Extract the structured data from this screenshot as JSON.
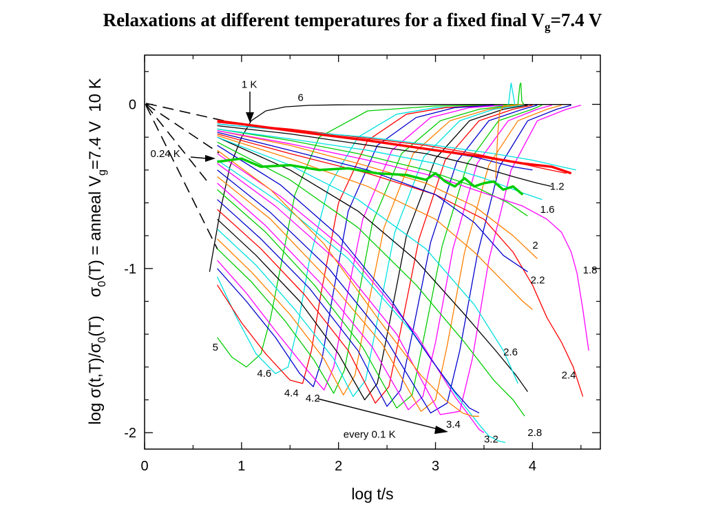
{
  "title": {
    "main": "Relaxations at different temperatures for a fixed final V",
    "sub": "g",
    "end": "=7.4 V"
  },
  "chart_data": {
    "type": "line",
    "xlabel": "log t/s",
    "ylabel": {
      "p1": "log σ(t,T)/σ",
      "s1": "0",
      "p2": "(T)    σ",
      "s2": "0",
      "p3": "(T) = anneal V",
      "s3": "g",
      "p4": "=7.4 V  10 K"
    },
    "xlim": [
      0,
      4.7
    ],
    "ylim": [
      -2.1,
      0.3
    ],
    "x_ticks": [
      {
        "v": 0,
        "label": "0"
      },
      {
        "v": 1,
        "label": "1"
      },
      {
        "v": 2,
        "label": "2"
      },
      {
        "v": 3,
        "label": "3"
      },
      {
        "v": 4,
        "label": "4"
      }
    ],
    "y_ticks": [
      {
        "v": 0,
        "label": "0"
      },
      {
        "v": -1,
        "label": "-1"
      },
      {
        "v": -2,
        "label": "-2"
      }
    ],
    "annotations": [
      {
        "text": "1 K",
        "x": 1.0,
        "y": 0.1
      },
      {
        "text": "6",
        "x": 1.58,
        "y": 0.02
      },
      {
        "text": "0.24 K",
        "x": 0.06,
        "y": -0.32
      },
      {
        "text": "1.2",
        "x": 4.18,
        "y": -0.52
      },
      {
        "text": "1.6",
        "x": 4.08,
        "y": -0.66
      },
      {
        "text": "2",
        "x": 4.0,
        "y": -0.88
      },
      {
        "text": "1.8",
        "x": 4.52,
        "y": -1.03
      },
      {
        "text": "2.2",
        "x": 3.98,
        "y": -1.09
      },
      {
        "text": "5",
        "x": 0.7,
        "y": -1.5
      },
      {
        "text": "4.6",
        "x": 1.16,
        "y": -1.66
      },
      {
        "text": "4.4",
        "x": 1.44,
        "y": -1.78
      },
      {
        "text": "4.2",
        "x": 1.66,
        "y": -1.81
      },
      {
        "text": "2.6",
        "x": 3.7,
        "y": -1.53
      },
      {
        "text": "2.4",
        "x": 4.3,
        "y": -1.67
      },
      {
        "text": "3.4",
        "x": 3.11,
        "y": -1.97
      },
      {
        "text": "every 0.1 K",
        "x": 2.05,
        "y": -2.03
      },
      {
        "text": "3.2",
        "x": 3.5,
        "y": -2.06
      },
      {
        "text": "2.8",
        "x": 3.95,
        "y": -2.02
      }
    ],
    "series": [
      {
        "color": "#000000",
        "x": [
          0.67,
          0.78,
          0.88,
          1.0,
          1.1,
          1.25,
          1.45,
          1.7,
          2.0,
          2.5,
          3.0,
          3.5,
          4.0,
          4.4
        ],
        "y": [
          -1.02,
          -0.65,
          -0.38,
          -0.2,
          -0.1,
          -0.04,
          -0.015,
          -0.006,
          -0.003,
          -0.002,
          -0.001,
          -0.001,
          -0.001,
          -0.001
        ]
      },
      {
        "color": "#00cc00",
        "x": [
          0.75,
          0.9,
          1.05,
          1.2,
          1.3,
          1.4,
          1.55,
          1.8,
          2.3,
          3.0,
          3.6,
          3.9
        ],
        "y": [
          -1.42,
          -1.54,
          -1.6,
          -1.52,
          -1.3,
          -1.0,
          -0.55,
          -0.2,
          -0.04,
          -0.01,
          -0.005,
          0
        ]
      },
      {
        "color": "#00e0e0",
        "x": [
          0.75,
          0.95,
          1.15,
          1.35,
          1.48,
          1.58,
          1.7,
          1.9,
          2.2,
          2.6,
          3.0,
          3.5,
          3.75,
          3.78,
          3.82,
          3.9
        ],
        "y": [
          -1.05,
          -1.3,
          -1.52,
          -1.64,
          -1.6,
          -1.35,
          -0.95,
          -0.5,
          -0.2,
          -0.06,
          -0.02,
          -0.01,
          -0.01,
          0.13,
          -0.01,
          -0.01
        ]
      },
      {
        "color": "#ff0000",
        "x": [
          0.75,
          1.0,
          1.25,
          1.5,
          1.63,
          1.72,
          1.82,
          2.0,
          2.3,
          2.7,
          3.1,
          3.6
        ],
        "y": [
          -1.1,
          -1.33,
          -1.52,
          -1.68,
          -1.7,
          -1.5,
          -1.15,
          -0.6,
          -0.22,
          -0.06,
          -0.02,
          -0.005
        ]
      },
      {
        "color": "#0000cc",
        "x": [
          0.75,
          1.05,
          1.35,
          1.6,
          1.74,
          1.83,
          1.93,
          2.1,
          2.4,
          2.8,
          3.2,
          3.6
        ],
        "y": [
          -1.0,
          -1.2,
          -1.42,
          -1.64,
          -1.72,
          -1.55,
          -1.2,
          -0.65,
          -0.25,
          -0.08,
          -0.02,
          -0.005
        ]
      },
      {
        "color": "#ff00ff",
        "x": [
          0.75,
          1.05,
          1.35,
          1.65,
          1.85,
          1.95,
          2.06,
          2.25,
          2.55,
          2.95,
          3.35,
          3.7
        ],
        "y": [
          -0.95,
          -1.15,
          -1.38,
          -1.6,
          -1.74,
          -1.6,
          -1.25,
          -0.7,
          -0.28,
          -0.08,
          -0.02,
          -0.005
        ]
      },
      {
        "color": "#00cc00",
        "x": [
          0.75,
          1.1,
          1.45,
          1.75,
          1.95,
          2.06,
          2.17,
          2.35,
          2.65,
          3.05,
          3.45,
          3.8
        ],
        "y": [
          -0.88,
          -1.08,
          -1.32,
          -1.56,
          -1.76,
          -1.62,
          -1.28,
          -0.72,
          -0.3,
          -0.1,
          -0.03,
          -0.005
        ]
      },
      {
        "color": "#ff7f00",
        "x": [
          0.75,
          1.1,
          1.5,
          1.85,
          2.05,
          2.17,
          2.28,
          2.47,
          2.77,
          3.15,
          3.55,
          3.85
        ],
        "y": [
          -0.82,
          -1.02,
          -1.28,
          -1.55,
          -1.77,
          -1.65,
          -1.3,
          -0.75,
          -0.3,
          -0.1,
          -0.03,
          -0.005
        ]
      },
      {
        "color": "#00e0e0",
        "x": [
          0.75,
          1.15,
          1.55,
          1.95,
          2.15,
          2.28,
          2.4,
          2.58,
          2.88,
          3.25,
          3.6,
          3.9
        ],
        "y": [
          -0.76,
          -0.98,
          -1.25,
          -1.55,
          -1.78,
          -1.68,
          -1.32,
          -0.78,
          -0.32,
          -0.1,
          -0.03,
          -0.005
        ]
      },
      {
        "color": "#000000",
        "x": [
          0.75,
          1.15,
          1.6,
          2.0,
          2.27,
          2.4,
          2.52,
          2.7,
          3.0,
          3.35,
          3.7,
          3.95
        ],
        "y": [
          -0.7,
          -0.92,
          -1.2,
          -1.52,
          -1.8,
          -1.7,
          -1.35,
          -0.8,
          -0.33,
          -0.1,
          -0.03,
          -0.005
        ]
      },
      {
        "color": "#ff0000",
        "x": [
          0.75,
          1.2,
          1.65,
          2.1,
          2.38,
          2.52,
          2.64,
          2.83,
          3.1,
          3.45,
          3.8,
          4.0
        ],
        "y": [
          -0.64,
          -0.88,
          -1.16,
          -1.5,
          -1.82,
          -1.72,
          -1.38,
          -0.82,
          -0.34,
          -0.1,
          -0.03,
          -0.005
        ]
      },
      {
        "color": "#0000cc",
        "x": [
          0.75,
          1.2,
          1.7,
          2.2,
          2.5,
          2.64,
          2.76,
          2.95,
          3.22,
          3.55,
          3.9,
          4.05
        ],
        "y": [
          -0.58,
          -0.82,
          -1.12,
          -1.5,
          -1.84,
          -1.74,
          -1.4,
          -0.84,
          -0.35,
          -0.1,
          -0.03,
          -0.005
        ]
      },
      {
        "color": "#00cc00",
        "x": [
          0.75,
          1.25,
          1.75,
          2.25,
          2.6,
          2.76,
          2.88,
          3.07,
          3.33,
          3.65,
          4.0,
          4.1
        ],
        "y": [
          -0.52,
          -0.78,
          -1.1,
          -1.48,
          -1.85,
          -1.77,
          -1.42,
          -0.86,
          -0.36,
          -0.1,
          -0.03,
          -0.005
        ]
      },
      {
        "color": "#ff00ff",
        "x": [
          0.75,
          1.25,
          1.8,
          2.35,
          2.72,
          2.87,
          3.0,
          3.18,
          3.43,
          3.75,
          4.05,
          4.2
        ],
        "y": [
          -0.48,
          -0.74,
          -1.08,
          -1.48,
          -1.86,
          -1.78,
          -1.45,
          -0.88,
          -0.36,
          -0.1,
          -0.03,
          -0.005
        ]
      },
      {
        "color": "#ff7f00",
        "x": [
          0.75,
          1.3,
          1.85,
          2.45,
          2.85,
          3.0,
          3.12,
          3.3,
          3.55,
          3.85,
          4.15,
          4.3
        ],
        "y": [
          -0.44,
          -0.7,
          -1.04,
          -1.46,
          -1.87,
          -1.8,
          -1.47,
          -0.9,
          -0.37,
          -0.1,
          -0.03,
          -0.005
        ]
      },
      {
        "color": "#0000cc",
        "x": [
          0.75,
          1.3,
          1.9,
          2.5,
          2.95,
          3.12,
          3.25,
          3.43,
          3.66,
          3.95,
          4.25,
          4.4
        ],
        "y": [
          -0.4,
          -0.66,
          -1.0,
          -1.44,
          -1.88,
          -1.82,
          -1.5,
          -0.92,
          -0.38,
          -0.1,
          -0.03,
          -0.005
        ]
      },
      {
        "color": "#ff00ff",
        "x": [
          0.75,
          1.35,
          2.0,
          2.6,
          3.05,
          3.25,
          3.38,
          3.55,
          3.78,
          4.05,
          4.35,
          4.5
        ],
        "y": [
          -0.36,
          -0.62,
          -0.96,
          -1.4,
          -1.89,
          -1.87,
          -1.55,
          -0.95,
          -0.4,
          -0.1,
          -0.03,
          -0.005
        ]
      },
      {
        "color": "#00e0e0",
        "x": [
          0.75,
          1.4,
          2.1,
          2.75,
          3.25,
          3.45,
          3.55,
          3.65,
          3.72
        ],
        "y": [
          -0.34,
          -0.6,
          -0.94,
          -1.38,
          -1.8,
          -1.95,
          -2.02,
          -2.05,
          -2.06
        ]
      },
      {
        "color": "#ff00ff",
        "x": [
          0.75,
          1.4,
          2.1,
          2.8,
          3.2,
          3.35,
          3.45,
          3.5
        ],
        "y": [
          -0.3,
          -0.56,
          -0.9,
          -1.4,
          -1.78,
          -1.9,
          -1.98,
          -2.0
        ]
      },
      {
        "color": "#ff7f00",
        "x": [
          0.75,
          1.3,
          1.85,
          2.4,
          2.85,
          3.1,
          3.28,
          3.38,
          3.45
        ],
        "y": [
          -0.28,
          -0.52,
          -0.85,
          -1.3,
          -1.65,
          -1.8,
          -1.88,
          -1.9,
          -1.9
        ]
      },
      {
        "color": "#0000cc",
        "x": [
          0.75,
          1.4,
          2.0,
          2.55,
          2.95,
          3.2,
          3.35,
          3.45
        ],
        "y": [
          -0.25,
          -0.49,
          -0.8,
          -1.2,
          -1.55,
          -1.75,
          -1.85,
          -1.88
        ]
      },
      {
        "color": "#00cc00",
        "x": [
          0.75,
          1.5,
          2.2,
          2.8,
          3.3,
          3.6,
          3.8,
          3.92
        ],
        "y": [
          -0.23,
          -0.46,
          -0.75,
          -1.1,
          -1.45,
          -1.68,
          -1.8,
          -1.9
        ]
      },
      {
        "color": "#000000",
        "x": [
          0.75,
          1.5,
          2.2,
          2.8,
          3.3,
          3.62,
          3.83,
          3.95
        ],
        "y": [
          -0.2,
          -0.4,
          -0.65,
          -0.95,
          -1.28,
          -1.5,
          -1.65,
          -1.75
        ]
      },
      {
        "color": "#00e0e0",
        "x": [
          0.75,
          1.5,
          2.2,
          2.9,
          3.4,
          3.7,
          3.85
        ],
        "y": [
          -0.2,
          -0.37,
          -0.58,
          -0.88,
          -1.22,
          -1.5,
          -1.7
        ]
      },
      {
        "color": "#ff7f00",
        "x": [
          0.75,
          1.5,
          2.3,
          3.0,
          3.4,
          3.7,
          3.9,
          4.0
        ],
        "y": [
          -0.19,
          -0.33,
          -0.5,
          -0.7,
          -0.9,
          -1.08,
          -1.2,
          -1.25
        ]
      },
      {
        "color": "#ff0000",
        "x": [
          0.75,
          1.5,
          2.3,
          3.0,
          3.5,
          3.8,
          4.0,
          4.15,
          4.3,
          4.42,
          4.52
        ],
        "y": [
          -0.18,
          -0.3,
          -0.42,
          -0.55,
          -0.7,
          -0.9,
          -1.1,
          -1.3,
          -1.45,
          -1.6,
          -1.78
        ]
      },
      {
        "color": "#0000cc",
        "x": [
          0.75,
          1.5,
          2.3,
          3.0,
          3.4,
          3.7,
          3.95
        ],
        "y": [
          -0.17,
          -0.28,
          -0.4,
          -0.55,
          -0.72,
          -0.92,
          -1.02
        ]
      },
      {
        "color": "#ff7f00",
        "x": [
          0.75,
          1.5,
          2.2,
          2.9,
          3.4,
          3.8,
          4.05
        ],
        "y": [
          -0.16,
          -0.25,
          -0.36,
          -0.48,
          -0.62,
          -0.8,
          -0.94
        ]
      },
      {
        "color": "#00cc00",
        "x": [
          0.75,
          1.5,
          2.2,
          2.9,
          3.4,
          3.75,
          3.95
        ],
        "y": [
          -0.15,
          -0.22,
          -0.3,
          -0.4,
          -0.5,
          -0.6,
          -0.68
        ]
      },
      {
        "color": "#ff00ff",
        "x": [
          0.75,
          1.5,
          2.3,
          3.0,
          3.5,
          3.9,
          4.15,
          4.3,
          4.4,
          4.46,
          4.52,
          4.58
        ],
        "y": [
          -0.16,
          -0.24,
          -0.34,
          -0.44,
          -0.54,
          -0.62,
          -0.7,
          -0.78,
          -0.9,
          -1.03,
          -1.25,
          -1.5
        ]
      },
      {
        "color": "#00e0e0",
        "x": [
          0.75,
          1.5,
          2.3,
          3.0,
          3.5,
          3.9,
          4.1
        ],
        "y": [
          -0.15,
          -0.21,
          -0.28,
          -0.36,
          -0.45,
          -0.54,
          -0.58
        ]
      },
      {
        "color": "#000000",
        "x": [
          0.75,
          1.5,
          2.2,
          2.9,
          3.4,
          3.8,
          4.05,
          4.2
        ],
        "y": [
          -0.13,
          -0.18,
          -0.24,
          -0.3,
          -0.37,
          -0.44,
          -0.48,
          -0.5
        ]
      },
      {
        "color": "#0000cc",
        "x": [
          0.75,
          1.5,
          2.2,
          2.9,
          3.4,
          3.8,
          4.0
        ],
        "y": [
          -0.12,
          -0.16,
          -0.21,
          -0.27,
          -0.32,
          -0.38,
          -0.4
        ]
      },
      {
        "color": "#ff0000",
        "x": [
          0.75,
          1.5,
          2.2,
          2.9,
          3.4,
          3.8,
          4.1,
          4.35
        ],
        "y": [
          -0.11,
          -0.15,
          -0.2,
          -0.25,
          -0.3,
          -0.35,
          -0.39,
          -0.42
        ]
      },
      {
        "color": "#00e0e0",
        "x": [
          0.75,
          1.5,
          2.3,
          3.0,
          3.6,
          4.0,
          4.3,
          4.45
        ],
        "y": [
          -0.12,
          -0.16,
          -0.2,
          -0.25,
          -0.3,
          -0.34,
          -0.38,
          -0.4
        ]
      },
      {
        "color": "#00cc00",
        "x": [
          0.75,
          1.0,
          1.2,
          1.5,
          1.8,
          2.1,
          2.4,
          2.7,
          2.9,
          3.0,
          3.1,
          3.2,
          3.3,
          3.4,
          3.5,
          3.6,
          3.7,
          3.8,
          3.9
        ],
        "y": [
          -0.35,
          -0.33,
          -0.38,
          -0.37,
          -0.4,
          -0.39,
          -0.42,
          -0.43,
          -0.46,
          -0.42,
          -0.47,
          -0.5,
          -0.45,
          -0.5,
          -0.48,
          -0.47,
          -0.52,
          -0.5,
          -0.55
        ]
      },
      {
        "color": "#ff7f00",
        "x": [
          3.62,
          3.64,
          3.66,
          3.7,
          3.8,
          3.9
        ],
        "y": [
          -0.45,
          -0.2,
          -0.05,
          -0.01,
          -0.005,
          0
        ]
      },
      {
        "color": "#00cc00",
        "x": [
          3.85,
          3.87,
          3.88,
          3.89,
          3.91
        ],
        "y": [
          0,
          0.12,
          0.13,
          0.02,
          0
        ]
      },
      {
        "color": "#ff0000",
        "x": [
          0.75,
          1.5,
          2.3,
          3.0,
          3.5,
          3.9,
          4.2,
          4.4
        ],
        "y": [
          -0.1,
          -0.16,
          -0.22,
          -0.28,
          -0.32,
          -0.36,
          -0.38,
          -0.42
        ]
      }
    ]
  }
}
